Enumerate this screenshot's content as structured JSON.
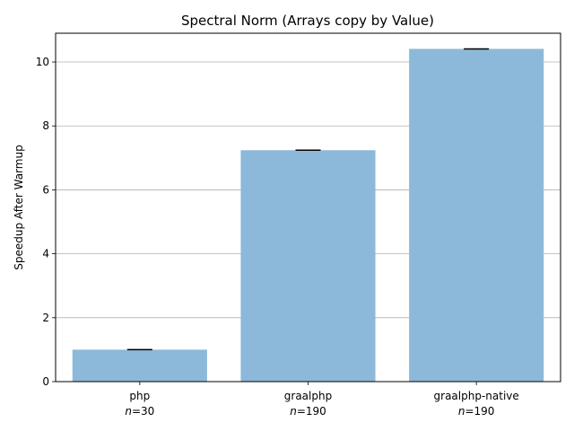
{
  "chart_data": {
    "type": "bar",
    "title": "Spectral Norm (Arrays copy by Value)",
    "xlabel": "",
    "ylabel": "Speedup After Warmup",
    "ylim": [
      0,
      10.9
    ],
    "yticks": [
      0,
      2,
      4,
      6,
      8,
      10
    ],
    "grid": "y-major",
    "categories": [
      "php",
      "graalphp",
      "graalphp-native"
    ],
    "sample_sizes": [
      "n=30",
      "n=190",
      "n=190"
    ],
    "values": [
      1.0,
      7.24,
      10.41
    ],
    "error_low": [
      0.99,
      7.23,
      10.4
    ],
    "error_high": [
      1.01,
      7.25,
      10.42
    ],
    "bar_color": "#8cb9d9",
    "error_color": "#000000",
    "grid_color": "#b0b0b0"
  }
}
